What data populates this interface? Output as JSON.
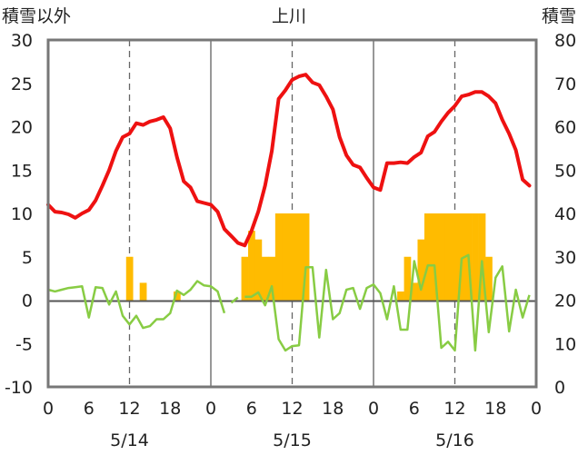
{
  "chart_data": {
    "type": "line",
    "title": "上川",
    "left_axis_label": "積雪以外",
    "right_axis_label": "積雪",
    "left_ylim": [
      -10,
      30
    ],
    "left_ticks": [
      "30",
      "25",
      "20",
      "15",
      "10",
      "5",
      "0",
      "-5",
      "-10"
    ],
    "right_ylim": [
      0,
      80
    ],
    "right_ticks": [
      "80",
      "70",
      "60",
      "50",
      "40",
      "30",
      "20",
      "10",
      "0"
    ],
    "x_hours_range": [
      0,
      72
    ],
    "x_tick_labels": [
      "0",
      "6",
      "12",
      "18",
      "0",
      "6",
      "12",
      "18",
      "0",
      "6",
      "12",
      "18",
      "0"
    ],
    "date_labels": [
      "5/14",
      "5/15",
      "5/16"
    ],
    "grid": "dashed verticals at 12h, solid day separators",
    "colors": {
      "temperature": "#ee1111",
      "wind": "#88cc44",
      "bar": "#ffbb00",
      "frame": "#777777",
      "zero": "#555555"
    },
    "temperature": [
      [
        0,
        11.0
      ],
      [
        1,
        10.2
      ],
      [
        2,
        10.1
      ],
      [
        3,
        9.9
      ],
      [
        4,
        9.5
      ],
      [
        5,
        10.0
      ],
      [
        6,
        10.4
      ],
      [
        7,
        11.5
      ],
      [
        8,
        13.2
      ],
      [
        9,
        15.0
      ],
      [
        10,
        17.2
      ],
      [
        11,
        18.8
      ],
      [
        12,
        19.2
      ],
      [
        13,
        20.4
      ],
      [
        14,
        20.2
      ],
      [
        15,
        20.6
      ],
      [
        16,
        20.8
      ],
      [
        17,
        21.1
      ],
      [
        18,
        19.8
      ],
      [
        19,
        16.5
      ],
      [
        20,
        13.7
      ],
      [
        21,
        13.0
      ],
      [
        22,
        11.4
      ],
      [
        23,
        11.2
      ],
      [
        24,
        11.0
      ],
      [
        25,
        10.2
      ],
      [
        26,
        8.2
      ],
      [
        27,
        7.4
      ],
      [
        28,
        6.6
      ],
      [
        29,
        6.3
      ],
      [
        30,
        8.0
      ],
      [
        31,
        10.2
      ],
      [
        32,
        13.2
      ],
      [
        33,
        17.2
      ],
      [
        34,
        23.2
      ],
      [
        35,
        24.2
      ],
      [
        36,
        25.4
      ],
      [
        37,
        25.8
      ],
      [
        38,
        26.0
      ],
      [
        39,
        25.1
      ],
      [
        40,
        24.8
      ],
      [
        41,
        23.5
      ],
      [
        42,
        22.0
      ],
      [
        43,
        18.8
      ],
      [
        44,
        16.7
      ],
      [
        45,
        15.6
      ],
      [
        46,
        15.3
      ],
      [
        47,
        14.1
      ],
      [
        48,
        13.0
      ],
      [
        49,
        12.7
      ],
      [
        50,
        15.8
      ],
      [
        51,
        15.8
      ],
      [
        52,
        15.9
      ],
      [
        53,
        15.8
      ],
      [
        54,
        16.5
      ],
      [
        55,
        17.0
      ],
      [
        56,
        18.9
      ],
      [
        57,
        19.4
      ],
      [
        58,
        20.6
      ],
      [
        59,
        21.6
      ],
      [
        60,
        22.4
      ],
      [
        61,
        23.5
      ],
      [
        62,
        23.7
      ],
      [
        63,
        24.0
      ],
      [
        64,
        24.0
      ],
      [
        65,
        23.5
      ],
      [
        66,
        22.7
      ],
      [
        67,
        20.8
      ],
      [
        68,
        19.2
      ],
      [
        69,
        17.3
      ],
      [
        70,
        13.9
      ],
      [
        71,
        13.2
      ]
    ],
    "wind": [
      [
        [
          0,
          1.2
        ],
        [
          1,
          1.0
        ],
        [
          2,
          1.2
        ],
        [
          3,
          1.4
        ],
        [
          4,
          1.5
        ],
        [
          5,
          1.6
        ],
        [
          6,
          -2.0
        ],
        [
          7,
          1.5
        ],
        [
          8,
          1.4
        ],
        [
          9,
          -0.5
        ],
        [
          10,
          1.0
        ],
        [
          11,
          -1.8
        ],
        [
          12,
          -2.8
        ],
        [
          13,
          -1.8
        ],
        [
          14,
          -3.2
        ],
        [
          15,
          -3.0
        ],
        [
          16,
          -2.2
        ],
        [
          17,
          -2.2
        ],
        [
          18,
          -1.5
        ],
        [
          19,
          1.1
        ],
        [
          20,
          0.6
        ],
        [
          21,
          1.2
        ],
        [
          22,
          2.2
        ],
        [
          23,
          1.7
        ],
        [
          24,
          1.6
        ],
        [
          25,
          1.0
        ],
        [
          26,
          -1.5
        ]
      ],
      [
        [
          27,
          -0.3
        ],
        [
          28,
          0.3
        ]
      ],
      [
        [
          29,
          0.4
        ],
        [
          30,
          0.4
        ],
        [
          31,
          0.9
        ],
        [
          32,
          -0.6
        ],
        [
          33,
          1.6
        ],
        [
          34,
          -4.5
        ],
        [
          35,
          -5.8
        ],
        [
          36,
          -5.3
        ],
        [
          37,
          -5.2
        ],
        [
          38,
          3.8
        ],
        [
          39,
          3.8
        ],
        [
          40,
          -4.3
        ],
        [
          41,
          3.5
        ],
        [
          42,
          -2.2
        ],
        [
          43,
          -1.5
        ],
        [
          44,
          1.2
        ],
        [
          45,
          1.4
        ],
        [
          46,
          -1.0
        ],
        [
          47,
          1.4
        ],
        [
          48,
          1.8
        ],
        [
          49,
          0.8
        ],
        [
          50,
          -2.2
        ],
        [
          51,
          1.6
        ],
        [
          52,
          -3.4
        ],
        [
          53,
          -3.4
        ],
        [
          54,
          4.5
        ],
        [
          55,
          1.2
        ],
        [
          56,
          4.0
        ],
        [
          57,
          4.0
        ],
        [
          58,
          -5.5
        ],
        [
          59,
          -4.8
        ],
        [
          60,
          -5.8
        ],
        [
          61,
          4.8
        ],
        [
          62,
          5.2
        ],
        [
          63,
          -5.8
        ],
        [
          64,
          4.5
        ],
        [
          65,
          -3.7
        ],
        [
          66,
          2.6
        ],
        [
          67,
          3.9
        ],
        [
          68,
          -3.6
        ],
        [
          69,
          1.2
        ],
        [
          70,
          -2.0
        ],
        [
          71,
          0.6
        ]
      ]
    ],
    "bars": [
      [
        12,
        5
      ],
      [
        14,
        2
      ],
      [
        19,
        1
      ],
      [
        29,
        5
      ],
      [
        30,
        8
      ],
      [
        31,
        7
      ],
      [
        32,
        5
      ],
      [
        33,
        5
      ],
      [
        34,
        10
      ],
      [
        35,
        10
      ],
      [
        36,
        10
      ],
      [
        37,
        10
      ],
      [
        38,
        10
      ],
      [
        52,
        1
      ],
      [
        53,
        5
      ],
      [
        54,
        2
      ],
      [
        55,
        7
      ],
      [
        56,
        10
      ],
      [
        57,
        10
      ],
      [
        58,
        10
      ],
      [
        59,
        10
      ],
      [
        60,
        10
      ],
      [
        61,
        10
      ],
      [
        62,
        10
      ],
      [
        63,
        10
      ],
      [
        64,
        10
      ],
      [
        65,
        5
      ]
    ]
  }
}
